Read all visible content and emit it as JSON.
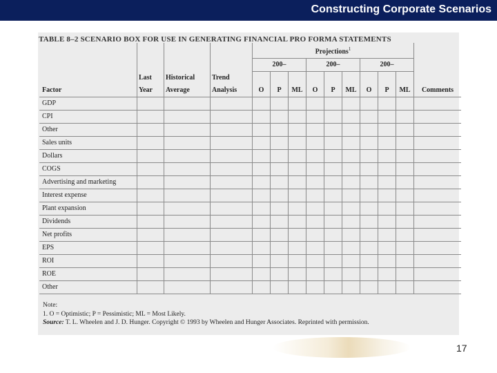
{
  "header": {
    "title": "Constructing Corporate Scenarios"
  },
  "table": {
    "caption": "TABLE 8–2 SCENARIO BOX FOR USE IN GENERATING FINANCIAL PRO FORMA STATEMENTS",
    "projections_label": "Projections",
    "projections_superscript": "1",
    "year_groups": [
      "200–",
      "200–",
      "200–"
    ],
    "col_factor": "Factor",
    "col_last_year": [
      "Last",
      "Year"
    ],
    "col_hist_avg": [
      "Historical",
      "Average"
    ],
    "col_trend": [
      "Trend",
      "Analysis"
    ],
    "scenario_cols": [
      "O",
      "P",
      "ML"
    ],
    "col_comments": "Comments",
    "rows": [
      "GDP",
      "CPI",
      "Other",
      "Sales units",
      "Dollars",
      "COGS",
      "Advertising and marketing",
      "Interest expense",
      "Plant expansion",
      "Dividends",
      "Net profits",
      "EPS",
      "ROI",
      "ROE",
      "Other"
    ]
  },
  "notes": {
    "label": "Note:",
    "line1": "1. O = Optimistic; P = Pessimistic; ML = Most Likely.",
    "source_label": "Source:",
    "source_text": "T. L. Wheelen and J. D. Hunger. Copyright © 1993 by Wheelen and Hunger Associates. Reprinted with permission."
  },
  "footer": {
    "page_number": "17"
  }
}
